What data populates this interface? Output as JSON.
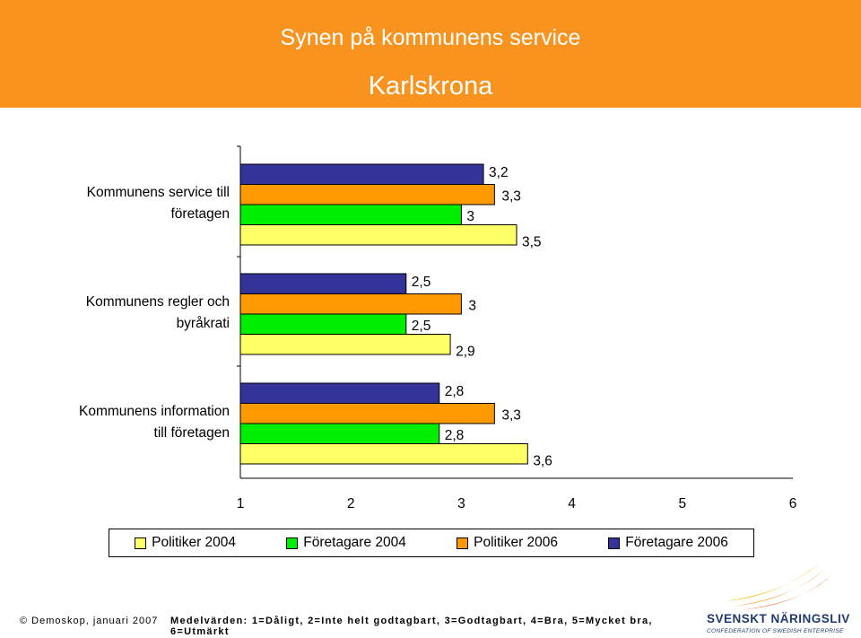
{
  "header": {
    "title": "Synen på kommunens service",
    "subtitle": "Karlskrona"
  },
  "colors": {
    "header_bg": "#f7931e",
    "politiker_2004": "#ffff66",
    "foretagare_2004": "#00ee00",
    "politiker_2006": "#ff9900",
    "foretagare_2006": "#333399"
  },
  "chart_data": {
    "type": "bar",
    "orientation": "horizontal",
    "categories": [
      "Kommunens service till företagen",
      "Kommunens regler och byråkrati",
      "Kommunens information till företagen"
    ],
    "category_lines": [
      [
        "Kommunens service till",
        "företagen"
      ],
      [
        "Kommunens regler och",
        "byråkrati"
      ],
      [
        "Kommunens information",
        "till företagen"
      ]
    ],
    "series": [
      {
        "name": "Företagare 2006",
        "color": "#333399",
        "values": [
          3.2,
          2.5,
          2.8
        ],
        "labels": [
          "3,2",
          "2,5",
          "2,8"
        ]
      },
      {
        "name": "Politiker 2006",
        "color": "#ff9900",
        "values": [
          3.3,
          3.0,
          3.3
        ],
        "labels": [
          "3,3",
          "3",
          "3,3"
        ]
      },
      {
        "name": "Företagare 2004",
        "color": "#00ee00",
        "values": [
          3.0,
          2.5,
          2.8
        ],
        "labels": [
          "3",
          "2,5",
          "2,8"
        ]
      },
      {
        "name": "Politiker 2004",
        "color": "#ffff66",
        "values": [
          3.5,
          2.9,
          3.6
        ],
        "labels": [
          "3,5",
          "2,9",
          "3,6"
        ]
      }
    ],
    "xlim": [
      1,
      6
    ],
    "xticks": [
      "1",
      "2",
      "3",
      "4",
      "5",
      "6"
    ],
    "grid": false,
    "legend_position": "bottom"
  },
  "legend": [
    {
      "label": "Politiker 2004",
      "color": "#ffff66"
    },
    {
      "label": "Företagare 2004",
      "color": "#00ee00"
    },
    {
      "label": "Politiker 2006",
      "color": "#ff9900"
    },
    {
      "label": "Företagare 2006",
      "color": "#333399"
    }
  ],
  "footer": {
    "copyright": "© Demoskop, januari 2007",
    "scale_note": "Medelvärden: 1=Dåligt, 2=Inte helt godtagbart, 3=Godtagbart, 4=Bra, 5=Mycket bra, 6=Utmärkt"
  },
  "logo": {
    "name": "SVENSKT NÄRINGSLIV",
    "tagline": "CONFEDERATION OF SWEDISH ENTERPRISE"
  }
}
